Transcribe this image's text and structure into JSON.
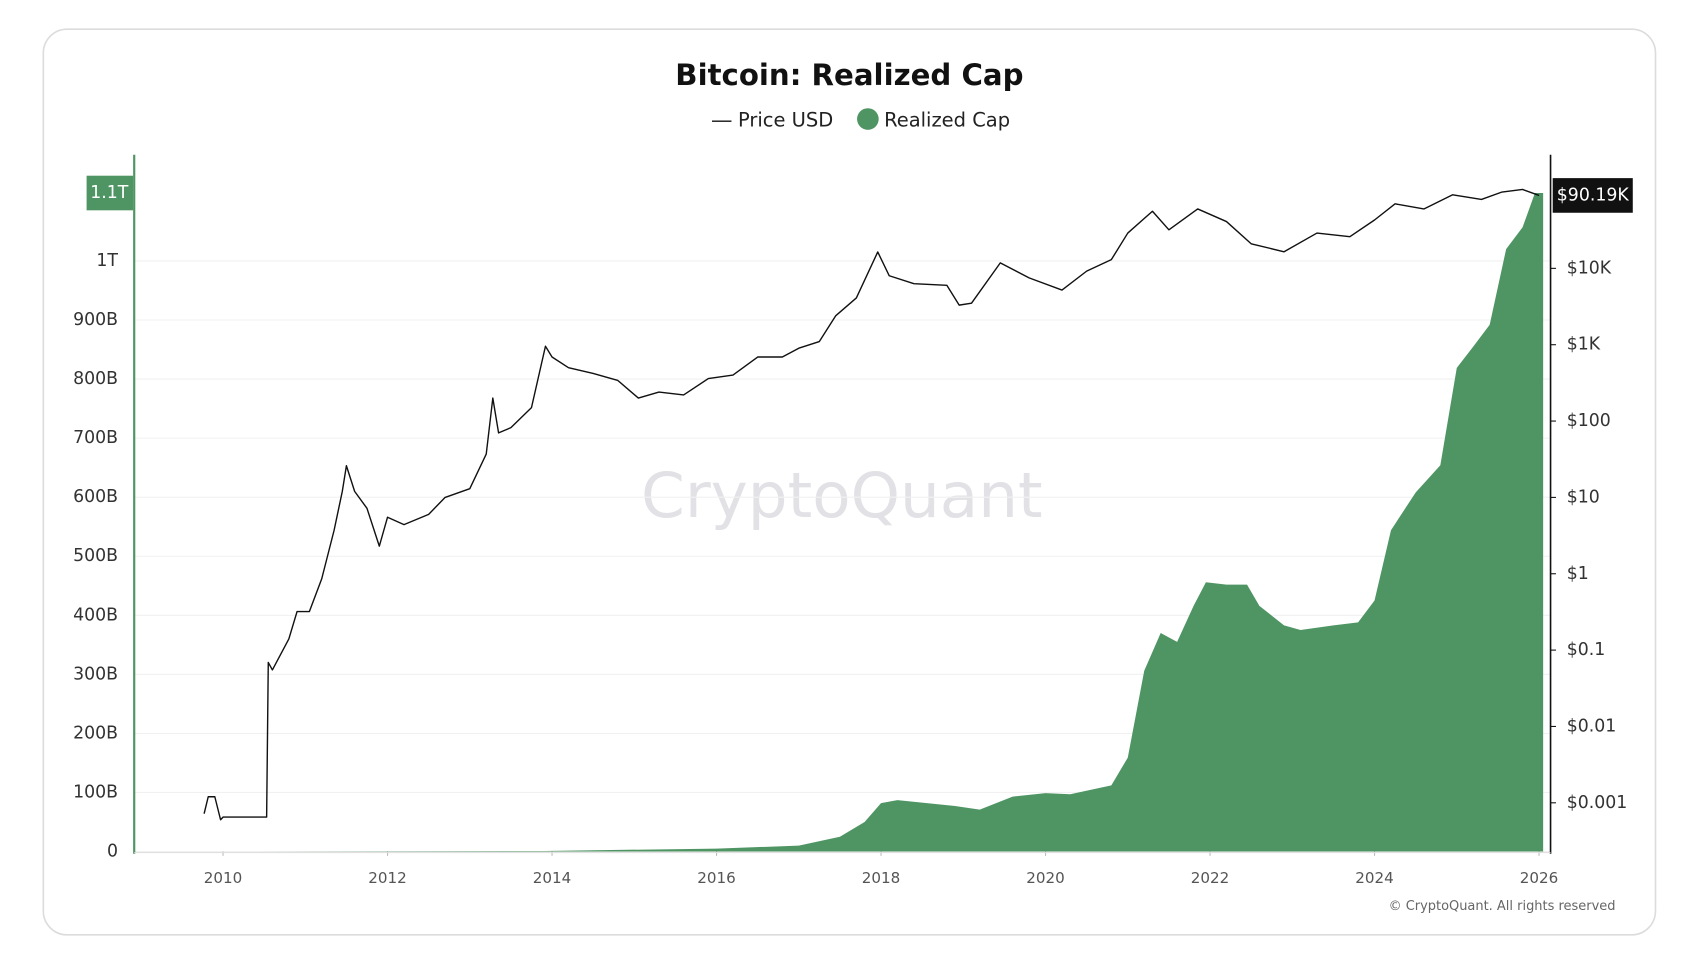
{
  "chart_data": {
    "type": "area",
    "title": "Bitcoin: Realized Cap",
    "watermark": "CryptoQuant",
    "footer": "© CryptoQuant. All rights reserved",
    "xlim": [
      2008.92,
      2026.14
    ],
    "xticks": [
      2010,
      2012,
      2014,
      2016,
      2018,
      2020,
      2022,
      2024,
      2026
    ],
    "ylim": [
      0,
      1167000000000
    ],
    "yticks": [
      0,
      {
        "value": 100000000000,
        "label": "100B"
      },
      {
        "value": 200000000000,
        "label": "200B"
      },
      {
        "value": 300000000000,
        "label": "300B"
      },
      {
        "value": 400000000000,
        "label": "400B"
      },
      {
        "value": 500000000000,
        "label": "500B"
      },
      {
        "value": 600000000000,
        "label": "600B"
      },
      {
        "value": 700000000000,
        "label": "700B"
      },
      {
        "value": 800000000000,
        "label": "800B"
      },
      {
        "value": 900000000000,
        "label": "900B"
      },
      {
        "value": 1000000000000,
        "label": "1T"
      }
    ],
    "y2lim": [
      0.00023,
      245000
    ],
    "y2_log": true,
    "y2ticks": [
      {
        "value": 0.001,
        "label": "$0.001"
      },
      {
        "value": 0.01,
        "label": "$0.01"
      },
      {
        "value": 0.1,
        "label": "$0.1"
      },
      {
        "value": 1,
        "label": "$1"
      },
      {
        "value": 10,
        "label": "$10"
      },
      {
        "value": 100,
        "label": "$100"
      },
      {
        "value": 1000,
        "label": "$1K"
      },
      {
        "value": 10000,
        "label": "$10K"
      }
    ],
    "grid": true,
    "series": [
      {
        "name": "Realized Cap",
        "type": "area",
        "color": "#4f9564",
        "x": [
          2009.8,
          2013.9,
          2016.0,
          2017.0,
          2017.5,
          2017.8,
          2018.0,
          2018.2,
          2018.9,
          2019.2,
          2019.6,
          2020.0,
          2020.3,
          2020.8,
          2021.0,
          2021.2,
          2021.4,
          2021.6,
          2021.8,
          2021.95,
          2022.2,
          2022.45,
          2022.6,
          2022.9,
          2023.1,
          2023.5,
          2023.8,
          2024.0,
          2024.2,
          2024.5,
          2024.8,
          2025.0,
          2025.2,
          2025.4,
          2025.6,
          2025.8,
          2025.95,
          2026.05
        ],
        "values": [
          0,
          1000000000,
          5000000000,
          10000000000,
          25000000000,
          50000000000,
          82000000000,
          87000000000,
          77000000000,
          71000000000,
          93000000000,
          99000000000,
          97000000000,
          112000000000,
          159000000000,
          306000000000,
          370000000000,
          355000000000,
          416000000000,
          456000000000,
          452000000000,
          452000000000,
          416000000000,
          383000000000,
          375000000000,
          383000000000,
          388000000000,
          425000000000,
          544000000000,
          608000000000,
          654000000000,
          819000000000,
          855000000000,
          892000000000,
          1020000000000,
          1057000000000,
          1115000000000,
          1115000000000
        ],
        "value_labels": [
          null,
          null,
          null,
          null,
          null,
          null,
          null,
          null,
          null,
          null,
          null,
          null,
          null,
          null,
          null,
          null,
          null,
          null,
          null,
          null,
          null,
          null,
          null,
          null,
          null,
          null,
          null,
          null,
          null,
          null,
          null,
          null,
          null,
          null,
          null,
          null,
          null,
          "1.1T"
        ]
      },
      {
        "name": "Price USD",
        "type": "line",
        "axis": "y2",
        "color": "#111111",
        "x": [
          2009.77,
          2009.82,
          2009.9,
          2009.97,
          2010.0,
          2010.53,
          2010.55,
          2010.6,
          2010.8,
          2010.9,
          2011.05,
          2011.2,
          2011.35,
          2011.45,
          2011.5,
          2011.6,
          2011.75,
          2011.9,
          2012.0,
          2012.2,
          2012.5,
          2012.7,
          2013.0,
          2013.2,
          2013.28,
          2013.35,
          2013.5,
          2013.75,
          2013.92,
          2014.0,
          2014.2,
          2014.5,
          2014.8,
          2015.05,
          2015.3,
          2015.6,
          2015.9,
          2016.2,
          2016.5,
          2016.8,
          2017.0,
          2017.25,
          2017.45,
          2017.7,
          2017.96,
          2018.1,
          2018.4,
          2018.8,
          2018.95,
          2019.1,
          2019.45,
          2019.8,
          2020.2,
          2020.5,
          2020.8,
          2021.0,
          2021.3,
          2021.5,
          2021.85,
          2022.2,
          2022.5,
          2022.9,
          2023.3,
          2023.7,
          2024.0,
          2024.25,
          2024.6,
          2024.95,
          2025.3,
          2025.55,
          2025.8,
          2026.0
        ],
        "values": [
          0.00072,
          0.0012,
          0.0012,
          0.0006,
          0.00065,
          0.00065,
          0.069,
          0.055,
          0.14,
          0.32,
          0.32,
          0.86,
          3.7,
          12,
          26,
          12,
          7.2,
          2.3,
          5.5,
          4.4,
          6,
          10,
          13,
          37,
          200,
          70,
          82,
          150,
          955,
          690,
          500,
          420,
          340,
          200,
          240,
          220,
          360,
          400,
          690,
          690,
          900,
          1100,
          2400,
          4100,
          16400,
          8000,
          6300,
          6000,
          3300,
          3500,
          11800,
          7500,
          5200,
          9200,
          13000,
          29000,
          56000,
          32000,
          60000,
          41000,
          21000,
          16500,
          29000,
          26000,
          43000,
          70000,
          60000,
          92000,
          80000,
          100000,
          108000,
          90190
        ],
        "value_labels": [
          null,
          null,
          null,
          null,
          null,
          null,
          null,
          null,
          null,
          null,
          null,
          null,
          null,
          null,
          null,
          null,
          null,
          null,
          null,
          null,
          null,
          null,
          null,
          null,
          null,
          null,
          null,
          null,
          null,
          null,
          null,
          null,
          null,
          null,
          null,
          null,
          null,
          null,
          null,
          null,
          null,
          null,
          null,
          null,
          null,
          null,
          null,
          null,
          null,
          null,
          null,
          null,
          null,
          null,
          null,
          null,
          null,
          null,
          null,
          null,
          null,
          null,
          null,
          null,
          null,
          null,
          null,
          null,
          null,
          null,
          null,
          "$90.19K"
        ]
      }
    ]
  }
}
